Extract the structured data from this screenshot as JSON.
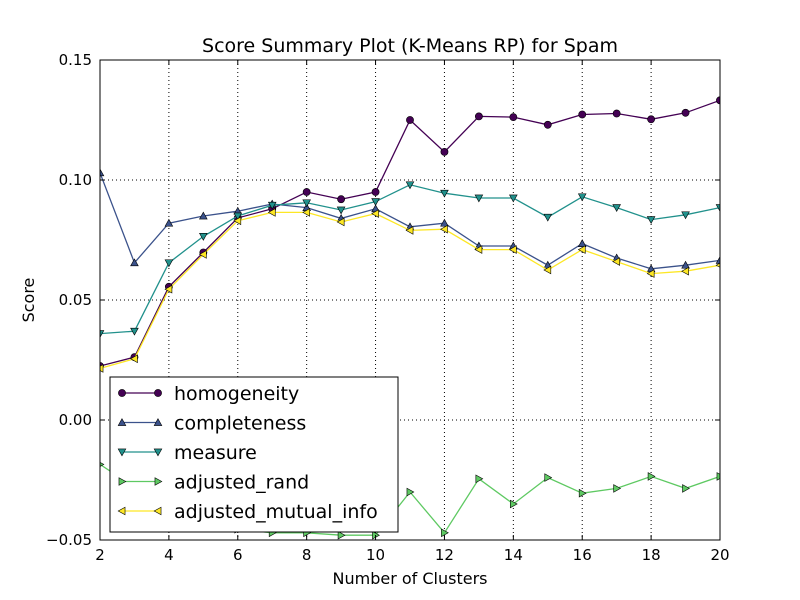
{
  "chart_data": {
    "type": "line",
    "title": "Score Summary Plot (K-Means RP) for Spam",
    "xlabel": "Number of Clusters",
    "ylabel": "Score",
    "xlim": [
      2,
      20
    ],
    "ylim": [
      -0.05,
      0.15
    ],
    "xticks": [
      2,
      4,
      6,
      8,
      10,
      12,
      14,
      16,
      18,
      20
    ],
    "yticks": [
      -0.05,
      0.0,
      0.05,
      0.1,
      0.15
    ],
    "ytick_labels": [
      "−0.05",
      "0.00",
      "0.05",
      "0.10",
      "0.15"
    ],
    "grid": true,
    "legend_position": "lower-left",
    "x": [
      2,
      3,
      4,
      5,
      6,
      7,
      8,
      9,
      10,
      11,
      12,
      13,
      14,
      15,
      16,
      17,
      18,
      19,
      20
    ],
    "series": [
      {
        "name": "homogeneity",
        "color": "#440154",
        "marker": "circle",
        "values": [
          0.0225,
          0.0262,
          0.0555,
          0.0698,
          0.0842,
          0.088,
          0.095,
          0.092,
          0.095,
          0.125,
          0.1117,
          0.1265,
          0.1262,
          0.123,
          0.1273,
          0.1277,
          0.1253,
          0.128,
          0.1332
        ]
      },
      {
        "name": "completeness",
        "color": "#3b528b",
        "marker": "triangle-up",
        "values": [
          0.103,
          0.0655,
          0.082,
          0.085,
          0.087,
          0.09,
          0.0885,
          0.084,
          0.088,
          0.0805,
          0.082,
          0.0725,
          0.0725,
          0.0645,
          0.0735,
          0.0675,
          0.063,
          0.0645,
          0.0665
        ]
      },
      {
        "name": "measure",
        "color": "#21918c",
        "marker": "triangle-down",
        "values": [
          0.036,
          0.037,
          0.0655,
          0.0765,
          0.085,
          0.0895,
          0.0905,
          0.0875,
          0.091,
          0.098,
          0.0945,
          0.0925,
          0.0925,
          0.0845,
          0.093,
          0.0885,
          0.0835,
          0.0855,
          0.0885
        ]
      },
      {
        "name": "adjusted_rand",
        "color": "#5ec962",
        "marker": "triangle-right",
        "values": [
          -0.0185,
          -0.028,
          -0.038,
          -0.044,
          -0.0455,
          -0.047,
          -0.047,
          -0.048,
          -0.048,
          -0.03,
          -0.047,
          -0.0245,
          -0.035,
          -0.024,
          -0.0305,
          -0.0285,
          -0.0235,
          -0.0285,
          -0.0235
        ]
      },
      {
        "name": "adjusted_mutual_info",
        "color": "#fde725",
        "marker": "triangle-left",
        "values": [
          0.0215,
          0.0255,
          0.0545,
          0.069,
          0.083,
          0.0865,
          0.0865,
          0.0825,
          0.086,
          0.079,
          0.0795,
          0.071,
          0.071,
          0.0625,
          0.071,
          0.066,
          0.061,
          0.062,
          0.0645
        ]
      }
    ]
  }
}
